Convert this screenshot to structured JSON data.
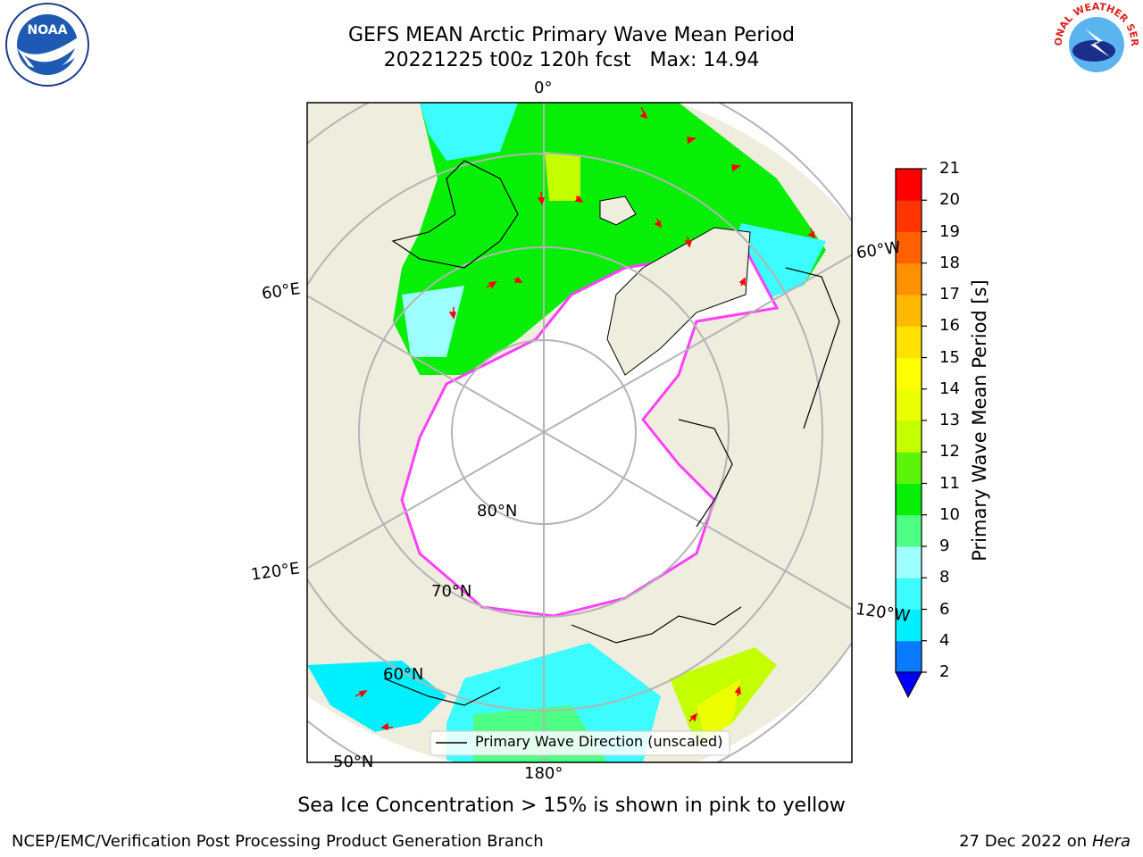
{
  "title_line1": "GEFS MEAN Arctic Primary Wave Mean Period",
  "title_line2": "20221225 t00z 120h fcst   Max: 14.94",
  "caption": "Sea Ice Concentration > 15% is shown in pink to yellow",
  "footer_left": "NCEP/EMC/Verification Post Processing Product Generation Branch",
  "footer_right_date": "27 Dec 2022 on",
  "footer_right_host": "Hera",
  "legend_label": "Primary Wave Direction (unscaled)",
  "map_labels": {
    "lon_0": "0°",
    "lon_60e": "60°E",
    "lon_60w": "60°W",
    "lon_120e": "120°E",
    "lon_120w": "120°W",
    "lon_180": "180°",
    "lat_80": "80°N",
    "lat_70": "70°N",
    "lat_60": "60°N",
    "lat_50": "50°N"
  },
  "colorbar": {
    "label": "Primary Wave Mean Period [s]",
    "ticks": [
      "2",
      "4",
      "6",
      "8",
      "9",
      "10",
      "11",
      "12",
      "13",
      "14",
      "15",
      "16",
      "17",
      "18",
      "19",
      "20",
      "21"
    ],
    "colors": [
      "#0a7aff",
      "#00f0ff",
      "#3dfcff",
      "#9dffff",
      "#4dff85",
      "#07ef07",
      "#5cf50a",
      "#c4ff00",
      "#ecff00",
      "#ffff00",
      "#ffe100",
      "#ffba00",
      "#ff9000",
      "#ff6000",
      "#ff3600",
      "#ff0000"
    ],
    "under_color": "#0000ff"
  },
  "logos": {
    "noaa": "NOAA",
    "nws_text": "NATIONAL WEATHER SERVICE"
  },
  "colors": {
    "land": "#efedde",
    "ice": "#ffffff",
    "ice_edge": "#ff40ff",
    "arrow": "#ff0000"
  }
}
